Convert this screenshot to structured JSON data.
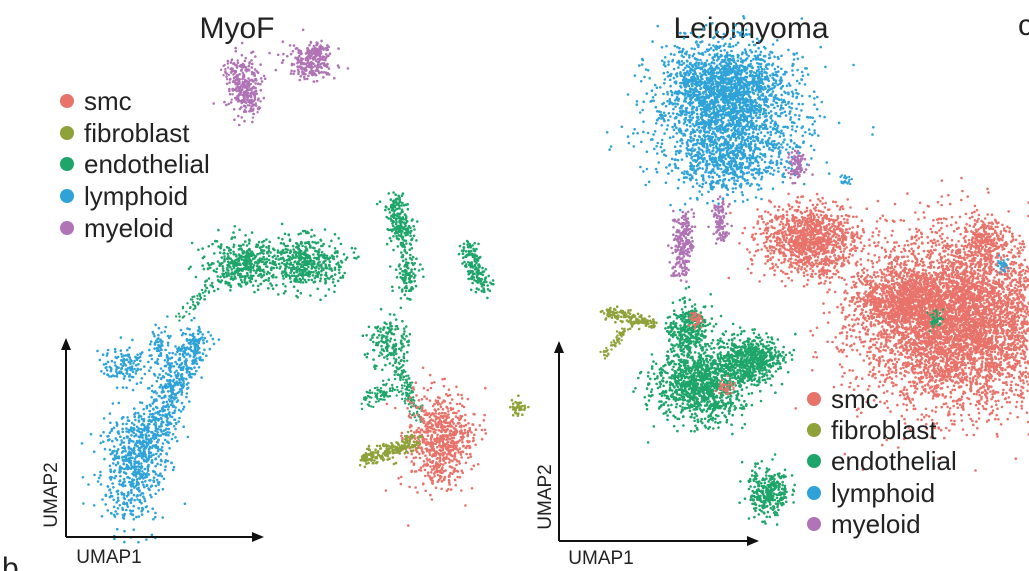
{
  "colors": {
    "smc": "#e8736a",
    "fibroblast": "#8fa23a",
    "endothelial": "#1ea56a",
    "lymphoid": "#2fa3d8",
    "myeloid": "#b073b5"
  },
  "panel_letters": {
    "bottom_left": "b",
    "top_right": "c"
  },
  "chart_data": [
    {
      "type": "scatter",
      "title": "MyoF",
      "xlabel": "UMAP1",
      "ylabel": "UMAP2",
      "grid": false,
      "legend_position": "top-left",
      "legend": [
        {
          "name": "smc",
          "color": "#e8736a"
        },
        {
          "name": "fibroblast",
          "color": "#8fa23a"
        },
        {
          "name": "endothelial",
          "color": "#1ea56a"
        },
        {
          "name": "lymphoid",
          "color": "#2fa3d8"
        },
        {
          "name": "myeloid",
          "color": "#b073b5"
        }
      ]
    },
    {
      "type": "scatter",
      "title": "Leiomyoma",
      "xlabel": "UMAP1",
      "ylabel": "UMAP2",
      "grid": false,
      "legend_position": "bottom-right",
      "legend": [
        {
          "name": "smc",
          "color": "#e8736a"
        },
        {
          "name": "fibroblast",
          "color": "#8fa23a"
        },
        {
          "name": "endothelial",
          "color": "#1ea56a"
        },
        {
          "name": "lymphoid",
          "color": "#2fa3d8"
        },
        {
          "name": "myeloid",
          "color": "#b073b5"
        }
      ]
    }
  ]
}
